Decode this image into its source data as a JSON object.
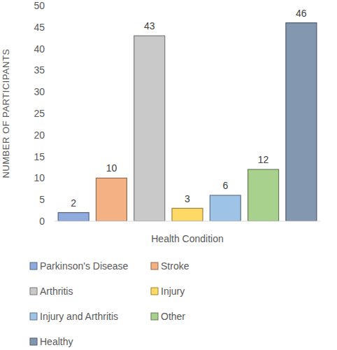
{
  "chart_data": {
    "type": "bar",
    "x_label": "Health Condition",
    "y_label": "NUMBER OF PARTICIPANTS",
    "categories": [
      "Parkinson's Disease",
      "Stroke",
      "Arthritis",
      "Injury",
      "Injury and Arthritis",
      "Other",
      "Healthy"
    ],
    "values": [
      2,
      10,
      43,
      3,
      6,
      12,
      46
    ],
    "colors": [
      "#8faadc",
      "#f4b183",
      "#c9c9c9",
      "#ffd966",
      "#9dc3e6",
      "#a9d18e",
      "#8497b0"
    ],
    "ylim": [
      0,
      50
    ],
    "yticks": [
      0,
      5,
      10,
      15,
      20,
      25,
      30,
      35,
      40,
      45,
      50
    ],
    "grid": false,
    "data_labels": true,
    "tick_labels": "y",
    "legend": "bottom"
  }
}
